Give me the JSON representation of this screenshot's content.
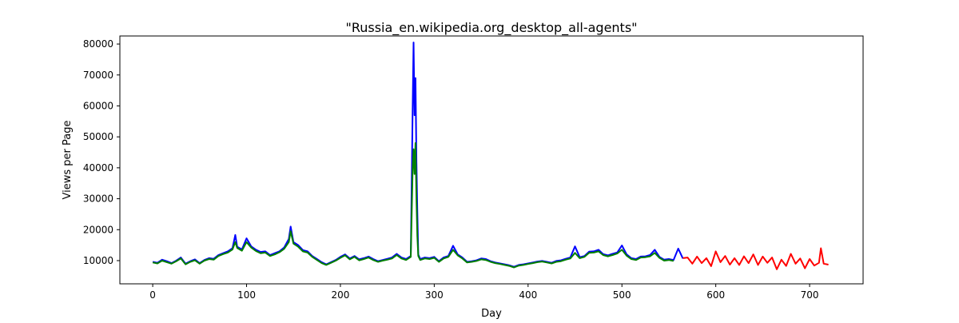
{
  "chart_data": {
    "type": "line",
    "title": "\"Russia_en.wikipedia.org_desktop_all-agents\"",
    "xlabel": "Day",
    "ylabel": "Views per Page",
    "xlim": [
      -35,
      757
    ],
    "ylim": [
      2500,
      82600
    ],
    "xticks": [
      0,
      100,
      200,
      300,
      400,
      500,
      600,
      700
    ],
    "yticks": [
      10000,
      20000,
      30000,
      40000,
      50000,
      60000,
      70000,
      80000
    ],
    "grid": false,
    "series": [
      {
        "color": "#0000ff",
        "x": [
          0,
          5,
          10,
          15,
          20,
          25,
          30,
          35,
          40,
          45,
          50,
          55,
          60,
          65,
          70,
          75,
          80,
          85,
          88,
          90,
          95,
          100,
          105,
          110,
          115,
          120,
          125,
          130,
          135,
          140,
          145,
          147,
          150,
          155,
          160,
          165,
          170,
          175,
          180,
          185,
          190,
          195,
          200,
          205,
          210,
          215,
          220,
          225,
          230,
          235,
          240,
          245,
          250,
          255,
          260,
          265,
          270,
          275,
          277,
          278,
          279,
          280,
          281,
          282,
          283,
          285,
          290,
          295,
          300,
          305,
          310,
          315,
          320,
          325,
          330,
          335,
          340,
          345,
          350,
          355,
          360,
          365,
          370,
          375,
          380,
          385,
          390,
          395,
          400,
          405,
          410,
          415,
          420,
          425,
          430,
          435,
          440,
          445,
          450,
          455,
          460,
          465,
          470,
          475,
          480,
          485,
          490,
          495,
          500,
          505,
          510,
          515,
          520,
          525,
          530,
          535,
          540,
          545,
          550,
          555,
          560,
          565
        ],
        "y": [
          9600,
          9300,
          10300,
          9800,
          9200,
          10000,
          11000,
          9000,
          9800,
          10400,
          9200,
          10200,
          10800,
          10600,
          11800,
          12400,
          13000,
          14000,
          18300,
          14500,
          13600,
          17200,
          14600,
          13500,
          12800,
          13000,
          11800,
          12400,
          13000,
          14200,
          17000,
          21000,
          16000,
          15000,
          13400,
          13000,
          11500,
          10500,
          9500,
          8800,
          9500,
          10200,
          11200,
          12000,
          10700,
          11500,
          10400,
          10800,
          11300,
          10500,
          9800,
          10200,
          10600,
          11000,
          12200,
          11000,
          10500,
          11500,
          60000,
          80500,
          57000,
          69000,
          42000,
          26000,
          12000,
          10500,
          11000,
          10800,
          11200,
          9800,
          11000,
          11500,
          14800,
          12000,
          11000,
          9600,
          9800,
          10100,
          10700,
          10500,
          9800,
          9400,
          9100,
          8800,
          8500,
          8000,
          8600,
          8800,
          9100,
          9400,
          9700,
          9900,
          9600,
          9300,
          9900,
          10100,
          10600,
          11000,
          14600,
          11100,
          11500,
          12900,
          13000,
          13500,
          12100,
          11700,
          12200,
          12600,
          14900,
          12000,
          10800,
          10500,
          11300,
          11400,
          11800,
          13500,
          11200,
          10300,
          10500,
          10200,
          13900,
          10700
        ]
      },
      {
        "color": "#008000",
        "x": [
          0,
          5,
          10,
          15,
          20,
          25,
          30,
          35,
          40,
          45,
          50,
          55,
          60,
          65,
          70,
          75,
          80,
          85,
          88,
          90,
          95,
          100,
          105,
          110,
          115,
          120,
          125,
          130,
          135,
          140,
          145,
          147,
          150,
          155,
          160,
          165,
          170,
          175,
          180,
          185,
          190,
          195,
          200,
          205,
          210,
          215,
          220,
          225,
          230,
          235,
          240,
          245,
          250,
          255,
          260,
          265,
          270,
          275,
          277,
          278,
          279,
          280,
          281,
          282,
          283,
          285,
          290,
          295,
          300,
          305,
          310,
          315,
          320,
          325,
          330,
          335,
          340,
          345,
          350,
          355,
          360,
          365,
          370,
          375,
          380,
          385,
          390,
          395,
          400,
          405,
          410,
          415,
          420,
          425,
          430,
          435,
          440,
          445,
          450,
          455,
          460,
          465,
          470,
          475,
          480,
          485,
          490,
          495,
          500,
          505,
          510,
          515,
          520,
          525,
          530,
          535,
          540,
          545,
          550,
          555
        ],
        "y": [
          9400,
          9100,
          10000,
          9500,
          9000,
          9800,
          10700,
          8800,
          9600,
          10100,
          9000,
          10000,
          10500,
          10300,
          11500,
          12100,
          12600,
          13600,
          16000,
          14100,
          13200,
          16000,
          14200,
          13100,
          12400,
          12600,
          11500,
          12000,
          12700,
          13800,
          16000,
          19500,
          15500,
          14500,
          13000,
          12600,
          11200,
          10200,
          9200,
          8600,
          9300,
          10000,
          10900,
          11700,
          10400,
          11200,
          10100,
          10500,
          11000,
          10200,
          9600,
          10000,
          10300,
          10700,
          11800,
          10700,
          10200,
          11200,
          40000,
          46000,
          38000,
          48000,
          30000,
          18000,
          11500,
          10200,
          10700,
          10500,
          10900,
          9600,
          10700,
          11200,
          13500,
          11700,
          10700,
          9400,
          9600,
          9900,
          10400,
          10200,
          9600,
          9200,
          8900,
          8600,
          8300,
          7800,
          8400,
          8600,
          8900,
          9200,
          9500,
          9700,
          9400,
          9100,
          9600,
          9800,
          10300,
          10700,
          12500,
          10800,
          11200,
          12500,
          12600,
          13000,
          11800,
          11400,
          11800,
          12300,
          13500,
          11600,
          10500,
          10200,
          11000,
          11100,
          11400,
          12500,
          10900,
          10000,
          10200,
          9900
        ]
      },
      {
        "color": "#ff0000",
        "x": [
          565,
          570,
          575,
          580,
          585,
          590,
          595,
          600,
          605,
          610,
          615,
          620,
          625,
          630,
          635,
          640,
          645,
          650,
          655,
          660,
          665,
          670,
          675,
          680,
          685,
          690,
          695,
          700,
          705,
          710,
          712,
          715,
          720
        ],
        "y": [
          10800,
          11000,
          9000,
          11300,
          9200,
          10800,
          8200,
          13000,
          9500,
          11500,
          8700,
          10800,
          8600,
          11400,
          9200,
          12000,
          8600,
          11300,
          9300,
          11000,
          7200,
          10300,
          8300,
          12200,
          9000,
          10700,
          7500,
          10500,
          8400,
          9300,
          14000,
          9000,
          8700
        ]
      }
    ]
  }
}
